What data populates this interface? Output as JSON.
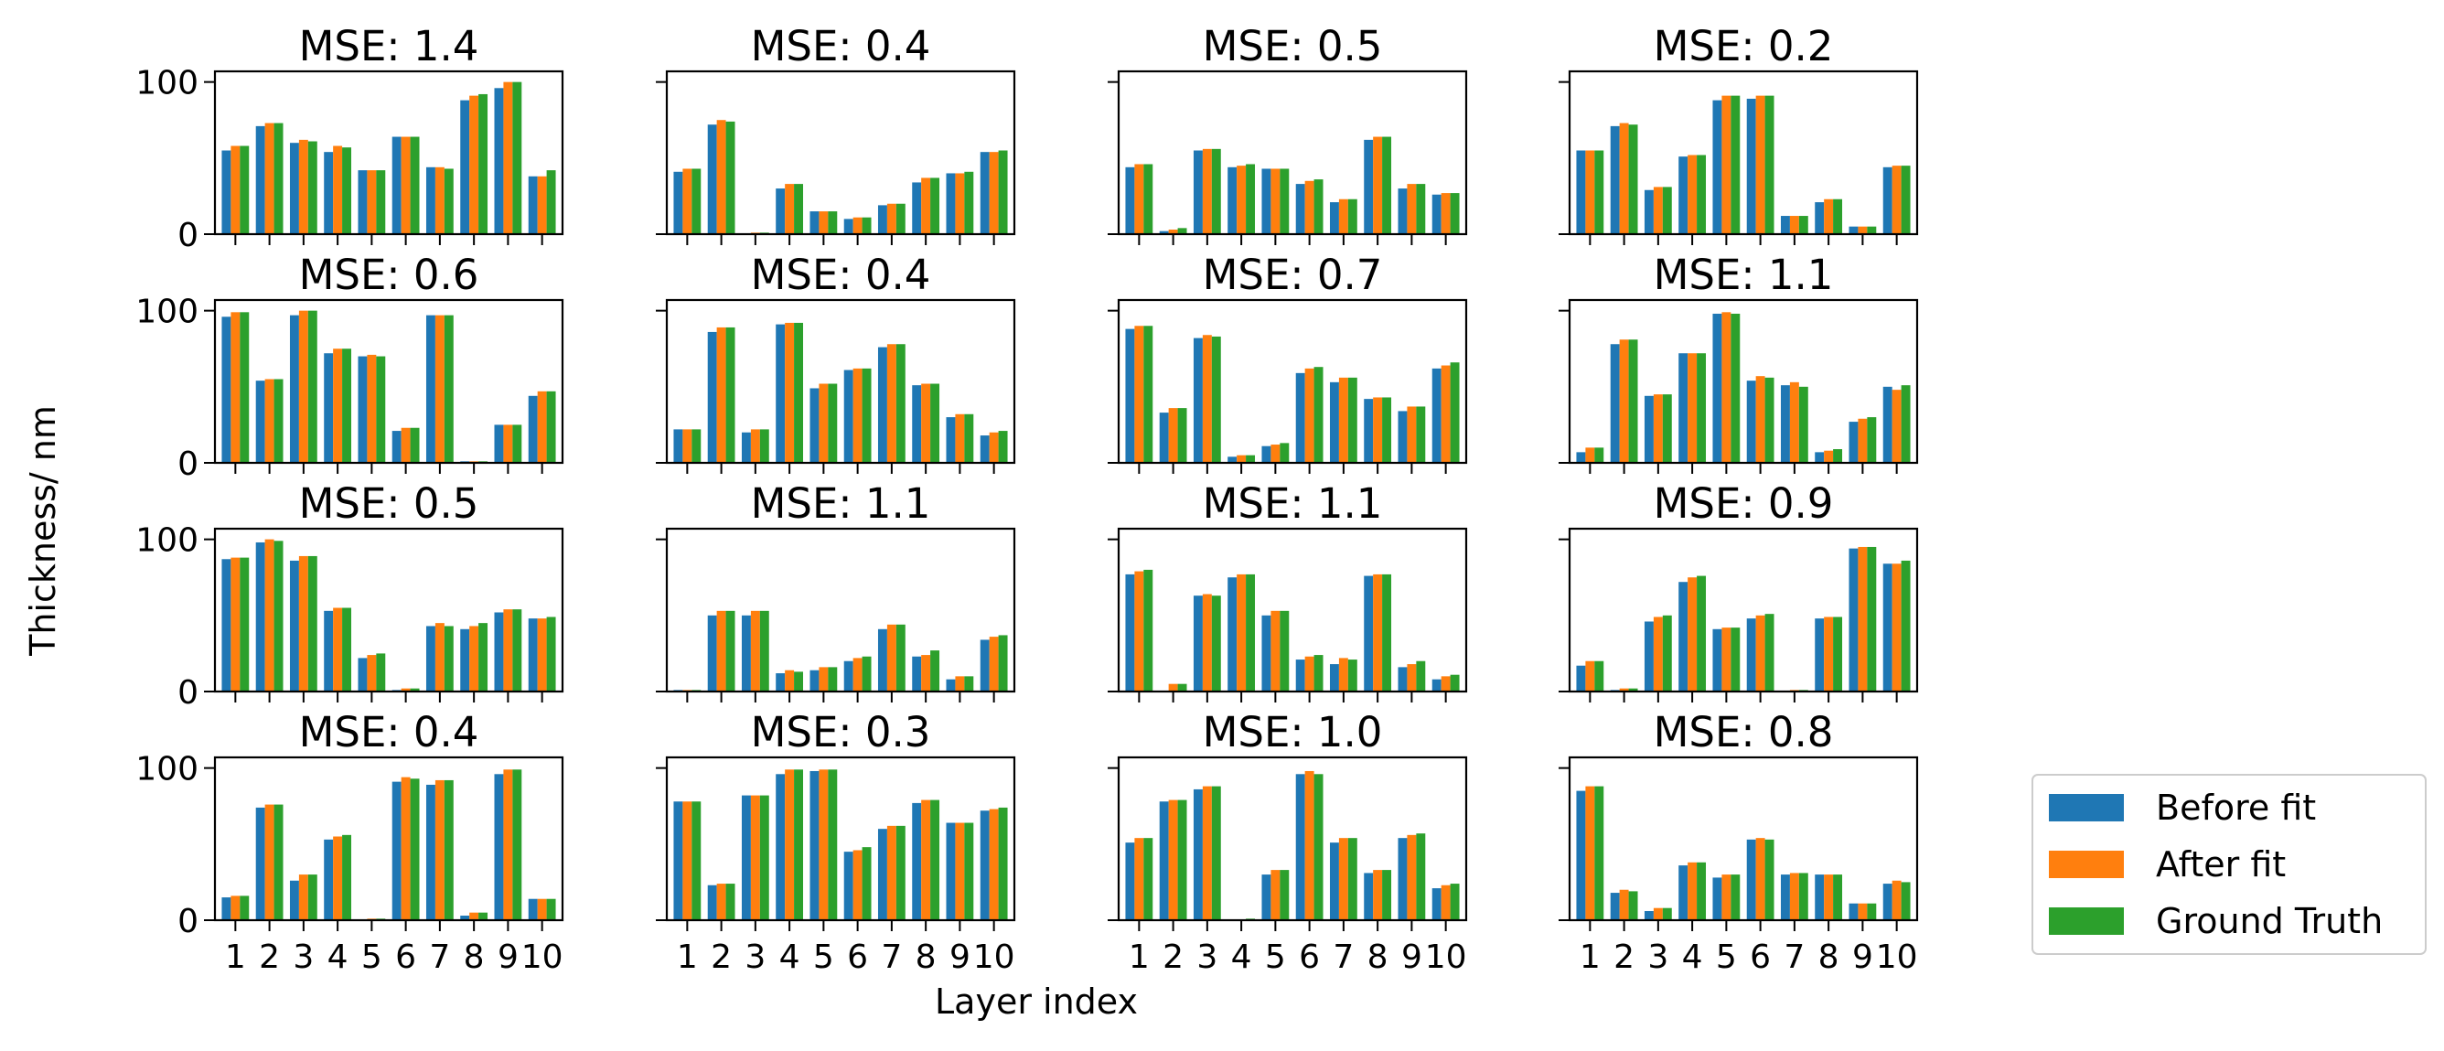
{
  "figure": {
    "ylabel": "Thickness/ nm",
    "xlabel": "Layer index",
    "legend": {
      "placement": "lower-right-outside",
      "entries": [
        {
          "label": "Before fit",
          "color": "#1f77b4"
        },
        {
          "label": "After fit",
          "color": "#ff7f0e"
        },
        {
          "label": "Ground Truth",
          "color": "#2ca02c"
        }
      ]
    }
  },
  "chart_data": {
    "type": "bar",
    "layout": "4x4 grid of grouped bar subplots, shared axes",
    "categories": [
      "1",
      "2",
      "3",
      "4",
      "5",
      "6",
      "7",
      "8",
      "9",
      "10"
    ],
    "ylim": [
      0,
      107
    ],
    "yticks": [
      0,
      100
    ],
    "grid": false,
    "series_names": [
      "Before fit",
      "After fit",
      "Ground Truth"
    ],
    "subplots": [
      {
        "title": "MSE:  1.4",
        "series": [
          {
            "name": "Before fit",
            "values": [
              55,
              71,
              60,
              54,
              42,
              64,
              44,
              88,
              96,
              38
            ]
          },
          {
            "name": "After fit",
            "values": [
              58,
              73,
              62,
              58,
              42,
              64,
              44,
              91,
              100,
              38
            ]
          },
          {
            "name": "Ground Truth",
            "values": [
              58,
              73,
              61,
              57,
              42,
              64,
              43,
              92,
              100,
              42
            ]
          }
        ]
      },
      {
        "title": "MSE:  0.4",
        "series": [
          {
            "name": "Before fit",
            "values": [
              41,
              72,
              0,
              30,
              15,
              10,
              19,
              34,
              40,
              54
            ]
          },
          {
            "name": "After fit",
            "values": [
              43,
              75,
              1,
              33,
              15,
              11,
              20,
              37,
              40,
              54
            ]
          },
          {
            "name": "Ground Truth",
            "values": [
              43,
              74,
              1,
              33,
              15,
              11,
              20,
              37,
              41,
              55
            ]
          }
        ]
      },
      {
        "title": "MSE:  0.5",
        "series": [
          {
            "name": "Before fit",
            "values": [
              44,
              2,
              55,
              44,
              43,
              33,
              21,
              62,
              30,
              26
            ]
          },
          {
            "name": "After fit",
            "values": [
              46,
              3,
              56,
              45,
              43,
              35,
              23,
              64,
              33,
              27
            ]
          },
          {
            "name": "Ground Truth",
            "values": [
              46,
              4,
              56,
              46,
              43,
              36,
              23,
              64,
              33,
              27
            ]
          }
        ]
      },
      {
        "title": "MSE:  0.2",
        "series": [
          {
            "name": "Before fit",
            "values": [
              55,
              71,
              29,
              51,
              88,
              89,
              12,
              21,
              5,
              44
            ]
          },
          {
            "name": "After fit",
            "values": [
              55,
              73,
              31,
              52,
              91,
              91,
              12,
              23,
              5,
              45
            ]
          },
          {
            "name": "Ground Truth",
            "values": [
              55,
              72,
              31,
              52,
              91,
              91,
              12,
              23,
              5,
              45
            ]
          }
        ]
      },
      {
        "title": "MSE:  0.6",
        "series": [
          {
            "name": "Before fit",
            "values": [
              96,
              54,
              97,
              72,
              70,
              21,
              97,
              1,
              25,
              44
            ]
          },
          {
            "name": "After fit",
            "values": [
              99,
              55,
              100,
              75,
              71,
              23,
              97,
              1,
              25,
              47
            ]
          },
          {
            "name": "Ground Truth",
            "values": [
              99,
              55,
              100,
              75,
              70,
              23,
              97,
              1,
              25,
              47
            ]
          }
        ]
      },
      {
        "title": "MSE:  0.4",
        "series": [
          {
            "name": "Before fit",
            "values": [
              22,
              86,
              20,
              91,
              49,
              61,
              76,
              51,
              30,
              18
            ]
          },
          {
            "name": "After fit",
            "values": [
              22,
              89,
              22,
              92,
              52,
              62,
              78,
              52,
              32,
              20
            ]
          },
          {
            "name": "Ground Truth",
            "values": [
              22,
              89,
              22,
              92,
              52,
              62,
              78,
              52,
              32,
              21
            ]
          }
        ]
      },
      {
        "title": "MSE:  0.7",
        "series": [
          {
            "name": "Before fit",
            "values": [
              88,
              33,
              82,
              4,
              11,
              59,
              53,
              42,
              34,
              62
            ]
          },
          {
            "name": "After fit",
            "values": [
              90,
              36,
              84,
              5,
              12,
              62,
              56,
              43,
              37,
              64
            ]
          },
          {
            "name": "Ground Truth",
            "values": [
              90,
              36,
              83,
              5,
              13,
              63,
              56,
              43,
              37,
              66
            ]
          }
        ]
      },
      {
        "title": "MSE:  1.1",
        "series": [
          {
            "name": "Before fit",
            "values": [
              7,
              78,
              44,
              72,
              98,
              54,
              51,
              7,
              27,
              50
            ]
          },
          {
            "name": "After fit",
            "values": [
              10,
              81,
              45,
              72,
              99,
              57,
              53,
              8,
              29,
              48
            ]
          },
          {
            "name": "Ground Truth",
            "values": [
              10,
              81,
              45,
              72,
              98,
              56,
              50,
              9,
              30,
              51
            ]
          }
        ]
      },
      {
        "title": "MSE:  0.5",
        "series": [
          {
            "name": "Before fit",
            "values": [
              87,
              98,
              86,
              53,
              22,
              1,
              43,
              41,
              52,
              48
            ]
          },
          {
            "name": "After fit",
            "values": [
              88,
              100,
              89,
              55,
              24,
              2,
              45,
              43,
              54,
              48
            ]
          },
          {
            "name": "Ground Truth",
            "values": [
              88,
              99,
              89,
              55,
              25,
              2,
              43,
              45,
              54,
              49
            ]
          }
        ]
      },
      {
        "title": "MSE:  1.1",
        "series": [
          {
            "name": "Before fit",
            "values": [
              1,
              50,
              50,
              12,
              14,
              20,
              41,
              23,
              8,
              34
            ]
          },
          {
            "name": "After fit",
            "values": [
              1,
              53,
              53,
              14,
              16,
              22,
              44,
              24,
              10,
              36
            ]
          },
          {
            "name": "Ground Truth",
            "values": [
              1,
              53,
              53,
              13,
              16,
              23,
              44,
              27,
              10,
              37
            ]
          }
        ]
      },
      {
        "title": "MSE:  1.1",
        "series": [
          {
            "name": "Before fit",
            "values": [
              77,
              0,
              63,
              75,
              50,
              21,
              18,
              76,
              16,
              8
            ]
          },
          {
            "name": "After fit",
            "values": [
              79,
              5,
              64,
              77,
              53,
              23,
              22,
              77,
              18,
              10
            ]
          },
          {
            "name": "Ground Truth",
            "values": [
              80,
              5,
              63,
              77,
              53,
              24,
              21,
              77,
              20,
              11
            ]
          }
        ]
      },
      {
        "title": "MSE:  0.9",
        "series": [
          {
            "name": "Before fit",
            "values": [
              17,
              1,
              46,
              72,
              41,
              48,
              0,
              48,
              94,
              84
            ]
          },
          {
            "name": "After fit",
            "values": [
              20,
              2,
              49,
              75,
              42,
              50,
              1,
              49,
              95,
              84
            ]
          },
          {
            "name": "Ground Truth",
            "values": [
              20,
              2,
              50,
              76,
              42,
              51,
              1,
              49,
              95,
              86
            ]
          }
        ]
      },
      {
        "title": "MSE:  0.4",
        "series": [
          {
            "name": "Before fit",
            "values": [
              15,
              74,
              26,
              53,
              0,
              91,
              89,
              3,
              96,
              14
            ]
          },
          {
            "name": "After fit",
            "values": [
              16,
              76,
              30,
              55,
              1,
              94,
              92,
              5,
              99,
              14
            ]
          },
          {
            "name": "Ground Truth",
            "values": [
              16,
              76,
              30,
              56,
              1,
              93,
              92,
              5,
              99,
              14
            ]
          }
        ]
      },
      {
        "title": "MSE:  0.3",
        "series": [
          {
            "name": "Before fit",
            "values": [
              78,
              23,
              82,
              96,
              98,
              45,
              60,
              77,
              64,
              72
            ]
          },
          {
            "name": "After fit",
            "values": [
              78,
              24,
              82,
              99,
              99,
              46,
              62,
              79,
              64,
              73
            ]
          },
          {
            "name": "Ground Truth",
            "values": [
              78,
              24,
              82,
              99,
              99,
              48,
              62,
              79,
              64,
              74
            ]
          }
        ]
      },
      {
        "title": "MSE:  1.0",
        "series": [
          {
            "name": "Before fit",
            "values": [
              51,
              78,
              86,
              0,
              30,
              96,
              51,
              31,
              54,
              21
            ]
          },
          {
            "name": "After fit",
            "values": [
              54,
              79,
              88,
              0,
              33,
              98,
              54,
              33,
              56,
              23
            ]
          },
          {
            "name": "Ground Truth",
            "values": [
              54,
              79,
              88,
              1,
              33,
              96,
              54,
              33,
              57,
              24
            ]
          }
        ]
      },
      {
        "title": "MSE:  0.8",
        "series": [
          {
            "name": "Before fit",
            "values": [
              85,
              18,
              6,
              36,
              28,
              53,
              30,
              30,
              11,
              24
            ]
          },
          {
            "name": "After fit",
            "values": [
              88,
              20,
              8,
              38,
              30,
              54,
              31,
              30,
              11,
              26
            ]
          },
          {
            "name": "Ground Truth",
            "values": [
              88,
              19,
              8,
              38,
              30,
              53,
              31,
              30,
              11,
              25
            ]
          }
        ]
      }
    ]
  }
}
